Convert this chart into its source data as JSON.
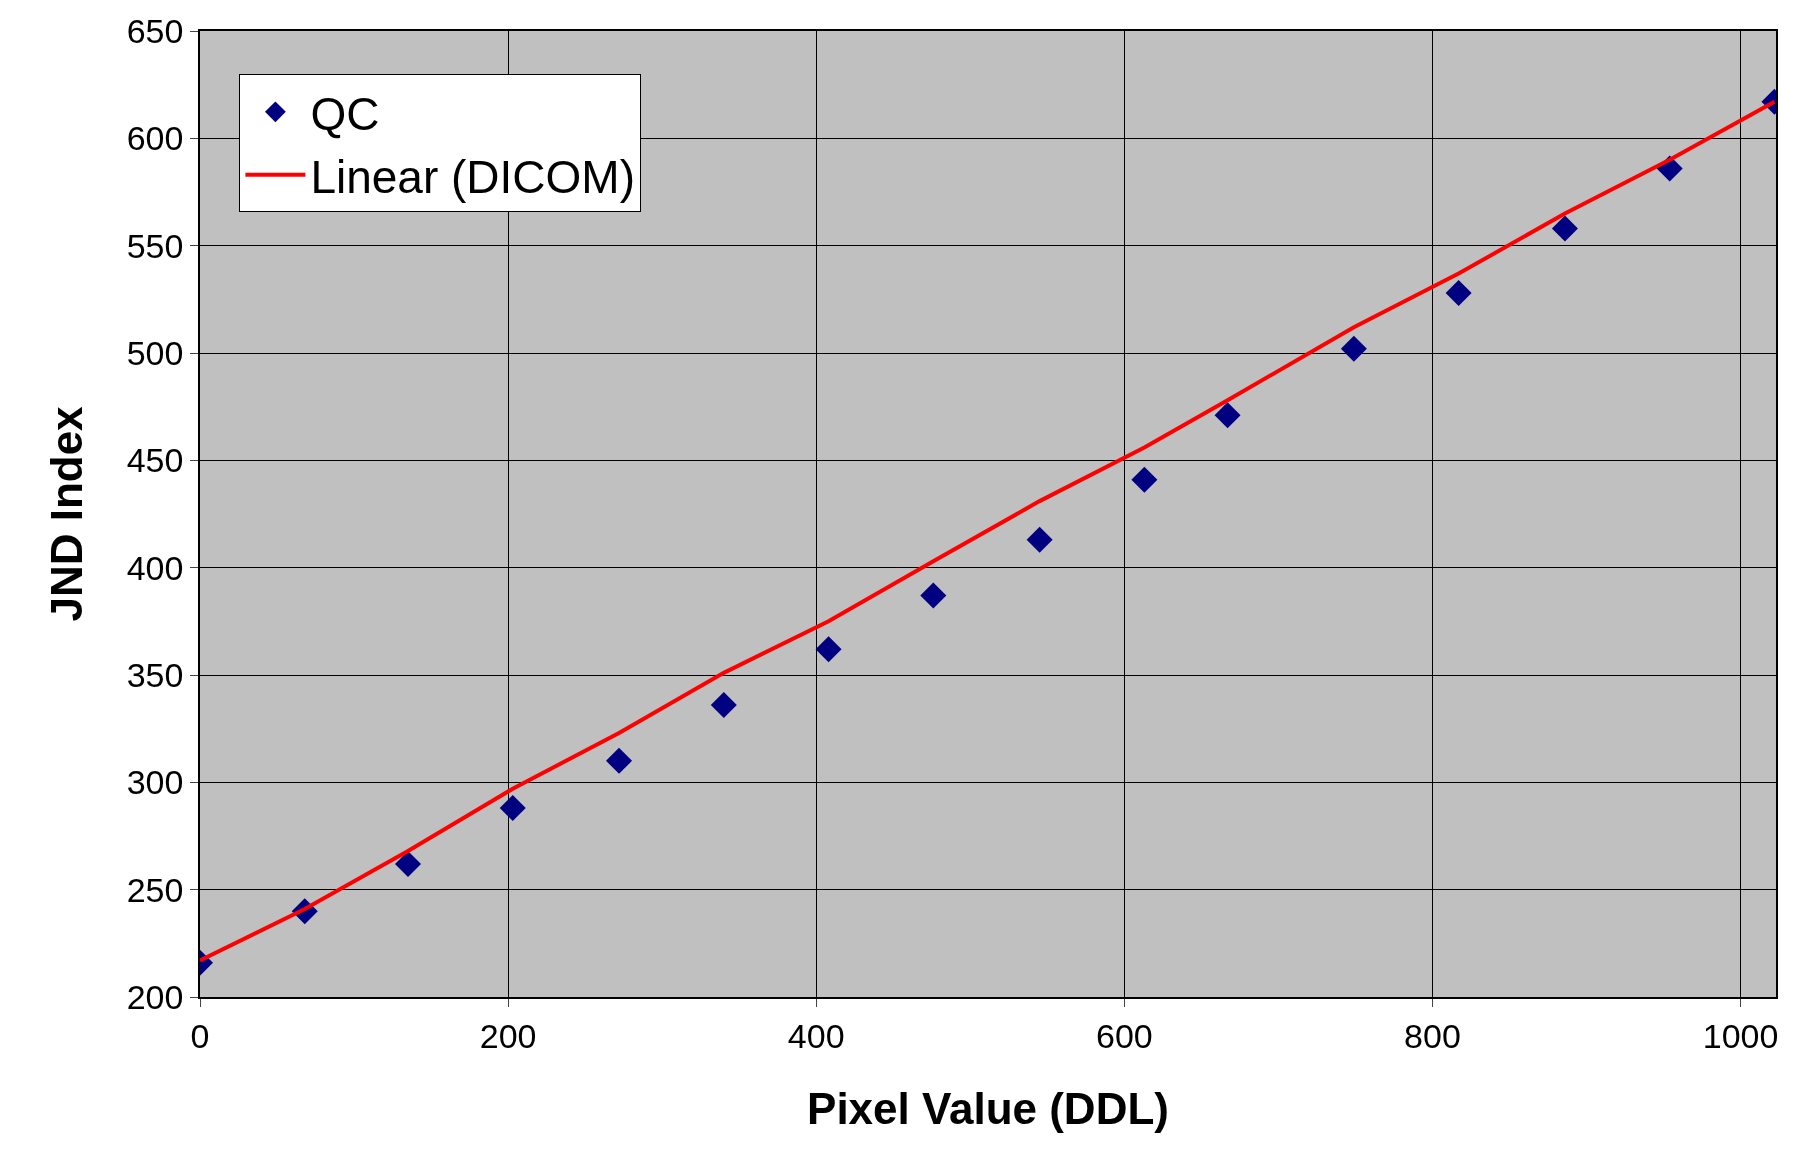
{
  "chart_data": {
    "type": "scatter",
    "xlabel": "Pixel Value (DDL)",
    "ylabel": "JND Index",
    "x": [
      0,
      68,
      135,
      203,
      272,
      340,
      408,
      476,
      545,
      613,
      667,
      749,
      817,
      886,
      954,
      1022
    ],
    "series": [
      {
        "name": "QC",
        "color": "#000080",
        "marker": "diamond",
        "values": [
          216,
          240,
          262,
          288,
          310,
          336,
          362,
          387,
          413,
          441,
          471,
          502,
          528,
          558,
          586,
          617
        ]
      },
      {
        "name": "Linear (DICOM)",
        "type": "line",
        "color": "#ff0000",
        "marker": "none",
        "line_style": "solid",
        "values": [
          217,
          241,
          268,
          297,
          323,
          351,
          375,
          403,
          431,
          456,
          478,
          512,
          537,
          565,
          590,
          617
        ]
      }
    ],
    "xlim": [
      0,
      1023
    ],
    "xticks": [
      0,
      200,
      400,
      600,
      800,
      1000
    ],
    "ylim": [
      200,
      650
    ],
    "yticks": [
      200,
      250,
      300,
      350,
      400,
      450,
      500,
      550,
      600,
      650
    ],
    "grid": true,
    "legend": "top left"
  }
}
